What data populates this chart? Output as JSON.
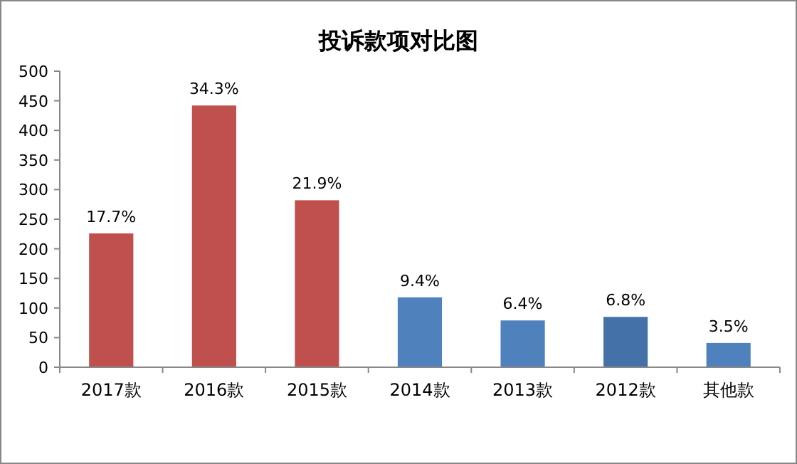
{
  "chart_data": {
    "type": "bar",
    "title": "投诉款项对比图",
    "categories": [
      "2017款",
      "2016款",
      "2015款",
      "2014款",
      "2013款",
      "2012款",
      "其他款"
    ],
    "values": [
      226,
      442,
      282,
      118,
      79,
      85,
      41
    ],
    "colors": [
      "#c0504d",
      "#c0504d",
      "#c0504d",
      "#4f81bd",
      "#4f81bd",
      "#4472a8",
      "#4f81bd"
    ],
    "annotations": [
      {
        "text": "17.7%",
        "x": "2017款",
        "y": 226
      },
      {
        "text": "34.3%",
        "x": "2016款",
        "y": 442
      },
      {
        "text": "21.9%",
        "x": "2015款",
        "y": 282
      },
      {
        "text": "9.4%",
        "x": "2014款",
        "y": 118
      },
      {
        "text": "6.4%",
        "x": "2013款",
        "y": 79
      },
      {
        "text": "6.8%",
        "x": "2012款",
        "y": 85
      },
      {
        "text": "3.5%",
        "x": "其他款",
        "y": 41
      }
    ],
    "ylim": [
      0,
      500
    ],
    "yticks": [
      0,
      50,
      100,
      150,
      200,
      250,
      300,
      350,
      400,
      450,
      500
    ],
    "grid": false
  }
}
